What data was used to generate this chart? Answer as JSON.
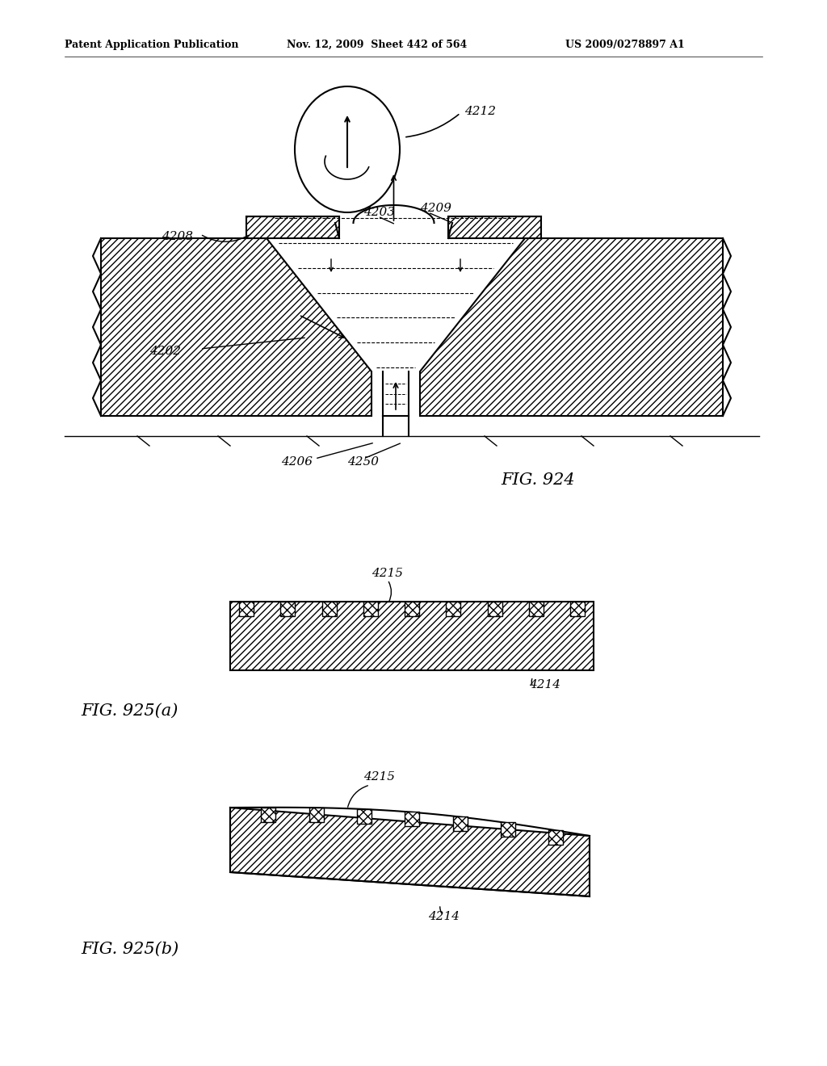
{
  "header_left": "Patent Application Publication",
  "header_mid": "Nov. 12, 2009  Sheet 442 of 564",
  "header_right": "US 2009/0278897 A1",
  "fig924_label": "FIG. 924",
  "fig925a_label": "FIG. 925(a)",
  "fig925b_label": "FIG. 925(b)",
  "bg_color": "#ffffff",
  "line_color": "#000000"
}
